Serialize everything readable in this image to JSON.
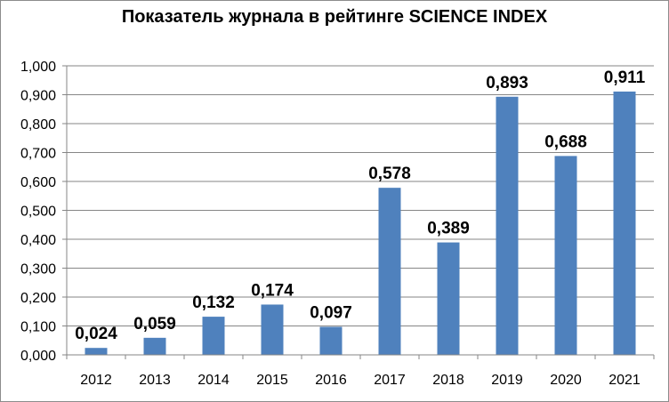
{
  "chart_data": {
    "type": "bar",
    "title": "Показатель журнала в рейтинге SCIENCE INDEX",
    "categories": [
      "2012",
      "2013",
      "2014",
      "2015",
      "2016",
      "2017",
      "2018",
      "2019",
      "2020",
      "2021"
    ],
    "values": [
      0.024,
      0.059,
      0.132,
      0.174,
      0.097,
      0.578,
      0.389,
      0.893,
      0.688,
      0.911
    ],
    "value_labels": [
      "0,024",
      "0,059",
      "0,132",
      "0,174",
      "0,097",
      "0,578",
      "0,389",
      "0,893",
      "0,688",
      "0,911"
    ],
    "y_ticks": [
      "0,000",
      "0,100",
      "0,200",
      "0,300",
      "0,400",
      "0,500",
      "0,600",
      "0,700",
      "0,800",
      "0,900",
      "1,000"
    ],
    "ylim": [
      0,
      1
    ],
    "xlabel": "",
    "ylabel": "",
    "grid": true,
    "legend": "none",
    "bar_color": "#4f81bd",
    "grid_color": "#868686"
  }
}
